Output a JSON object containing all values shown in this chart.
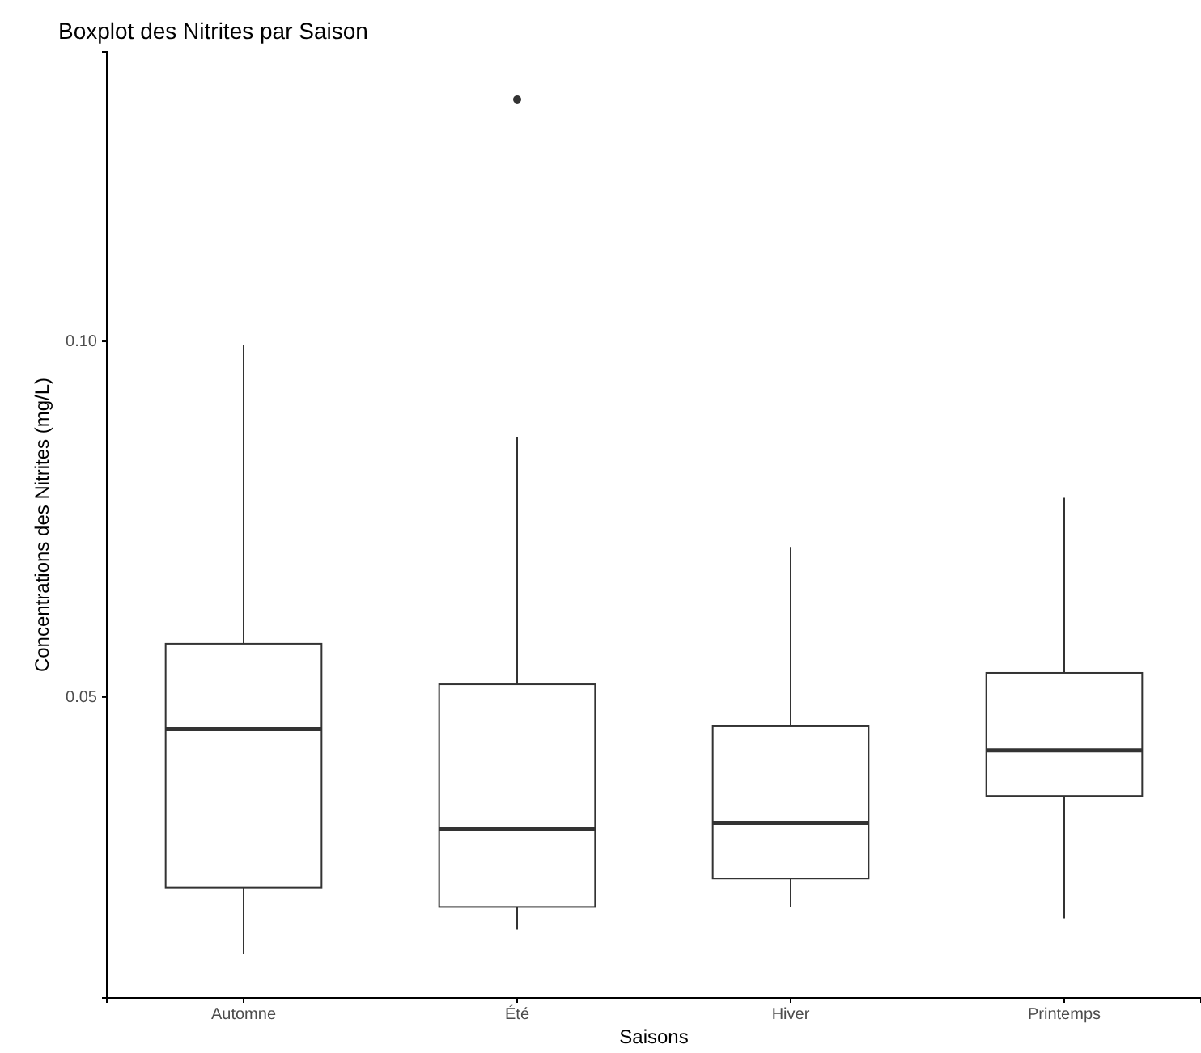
{
  "chart_data": {
    "type": "box",
    "title": "Boxplot des Nitrites par Saison",
    "xlabel": "Saisons",
    "ylabel": "Concentrations des Nitrites (mg/L)",
    "categories": [
      "Automne",
      "Été",
      "Hiver",
      "Printemps"
    ],
    "boxes": [
      {
        "low": 0.0139,
        "q1": 0.0232,
        "median": 0.0455,
        "q3": 0.0575,
        "high": 0.0995
      },
      {
        "low": 0.0173,
        "q1": 0.0205,
        "median": 0.0314,
        "q3": 0.0518,
        "high": 0.0866,
        "outliers": [
          0.134
        ]
      },
      {
        "low": 0.0205,
        "q1": 0.0245,
        "median": 0.0323,
        "q3": 0.0459,
        "high": 0.0711
      },
      {
        "low": 0.0189,
        "q1": 0.0361,
        "median": 0.0425,
        "q3": 0.0534,
        "high": 0.078
      }
    ],
    "ylim": [
      0.0077,
      0.1407
    ],
    "yticks": [
      {
        "value": 0.05,
        "label": "0.05"
      },
      {
        "value": 0.1,
        "label": "0.10"
      }
    ],
    "grid": false
  }
}
